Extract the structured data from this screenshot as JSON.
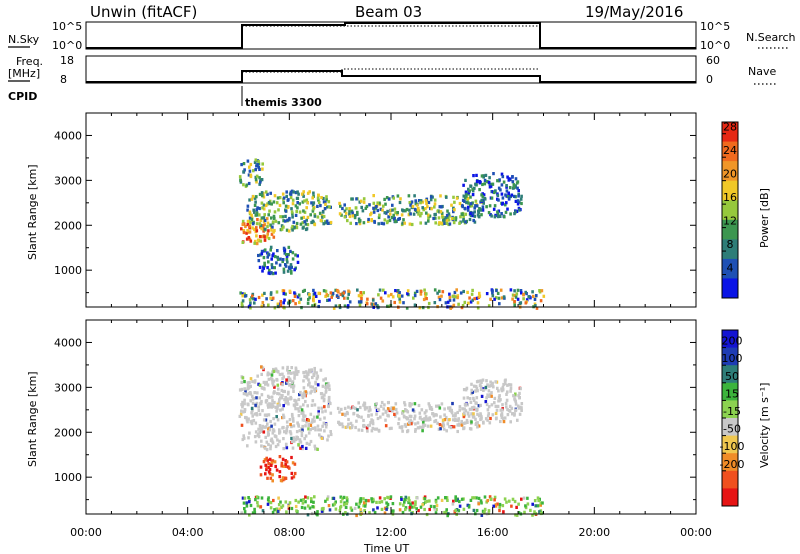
{
  "header": {
    "station": "Unwin (fitACF)",
    "beam": "Beam 03",
    "date": "19/May/2016"
  },
  "top_panels": {
    "nsky_label": "N.Sky",
    "nsky_ticks": [
      "10^5",
      "10^0"
    ],
    "nsearch_label": "N.Search",
    "nsearch_ticks": [
      "10^5",
      "10^0"
    ],
    "freq_label_1": "Freq.",
    "freq_label_2": "[MHz]",
    "freq_ticks": [
      "18",
      "8"
    ],
    "nave_label": "Nave",
    "nave_ticks": [
      "60",
      "0"
    ],
    "cpid_label": "CPID",
    "cpid_text": "themis 3300"
  },
  "colors": {
    "power": [
      "#0a14e6",
      "#1e50b4",
      "#2e7d78",
      "#3c9650",
      "#96c83c",
      "#f0c828",
      "#f09628",
      "#f06a1e",
      "#e62814"
    ],
    "velocity": [
      "#e61414",
      "#f0501e",
      "#f08c28",
      "#f0c850",
      "#c8c8c8",
      "#8cd250",
      "#3cb43c",
      "#2e7d78",
      "#1e3cb4",
      "#1414d2"
    ]
  },
  "chart_data": [
    {
      "type": "heatmap",
      "name": "power",
      "ylabel": "Slant Range [km]",
      "xlabel": "",
      "x_ticks": [
        "00:00",
        "04:00",
        "08:00",
        "12:00",
        "16:00",
        "20:00",
        "00:00"
      ],
      "x_range_hours": [
        0,
        24
      ],
      "y_ticks": [
        1000,
        2000,
        3000,
        4000
      ],
      "y_range_km": [
        180,
        4500
      ],
      "colorbar_label": "Power [dB]",
      "colorbar_ticks": [
        4,
        8,
        12,
        16,
        20,
        24,
        28
      ],
      "colorbar_range": [
        0,
        30
      ],
      "echo_regions": [
        {
          "t0": 6.0,
          "t1": 7.4,
          "r0": 1600,
          "r1": 2200,
          "level": "high"
        },
        {
          "t0": 6.3,
          "t1": 9.6,
          "r0": 1900,
          "r1": 2800,
          "level": "mid"
        },
        {
          "t0": 6.0,
          "t1": 6.9,
          "r0": 2900,
          "r1": 3500,
          "level": "mid"
        },
        {
          "t0": 6.7,
          "t1": 8.3,
          "r0": 950,
          "r1": 1550,
          "level": "low"
        },
        {
          "t0": 9.8,
          "t1": 15.6,
          "r0": 2050,
          "r1": 2700,
          "level": "mid"
        },
        {
          "t0": 14.8,
          "t1": 17.1,
          "r0": 2200,
          "r1": 3200,
          "level": "low"
        },
        {
          "t0": 6.0,
          "t1": 18.0,
          "r0": 180,
          "r1": 600,
          "level": "mixed"
        }
      ]
    },
    {
      "type": "heatmap",
      "name": "velocity",
      "ylabel": "Slant Range [km]",
      "xlabel": "Time UT",
      "x_ticks": [
        "00:00",
        "04:00",
        "08:00",
        "12:00",
        "16:00",
        "20:00",
        "00:00"
      ],
      "x_range_hours": [
        0,
        24
      ],
      "y_ticks": [
        1000,
        2000,
        3000,
        4000
      ],
      "y_range_km": [
        180,
        4500
      ],
      "colorbar_label": "Velocity [m s⁻¹]",
      "colorbar_ticks": [
        "-200",
        "-100",
        "-50",
        "-15",
        "15",
        "50",
        "100",
        "200"
      ],
      "echo_regions": [
        {
          "t0": 6.0,
          "t1": 9.6,
          "r0": 1650,
          "r1": 3500,
          "level": "ground"
        },
        {
          "t0": 6.8,
          "t1": 8.2,
          "r0": 950,
          "r1": 1500,
          "level": "negative"
        },
        {
          "t0": 9.8,
          "t1": 15.6,
          "r0": 2050,
          "r1": 2700,
          "level": "ground"
        },
        {
          "t0": 14.8,
          "t1": 17.1,
          "r0": 2200,
          "r1": 3200,
          "level": "ground"
        },
        {
          "t0": 6.0,
          "t1": 18.0,
          "r0": 180,
          "r1": 600,
          "level": "positive"
        }
      ]
    }
  ]
}
